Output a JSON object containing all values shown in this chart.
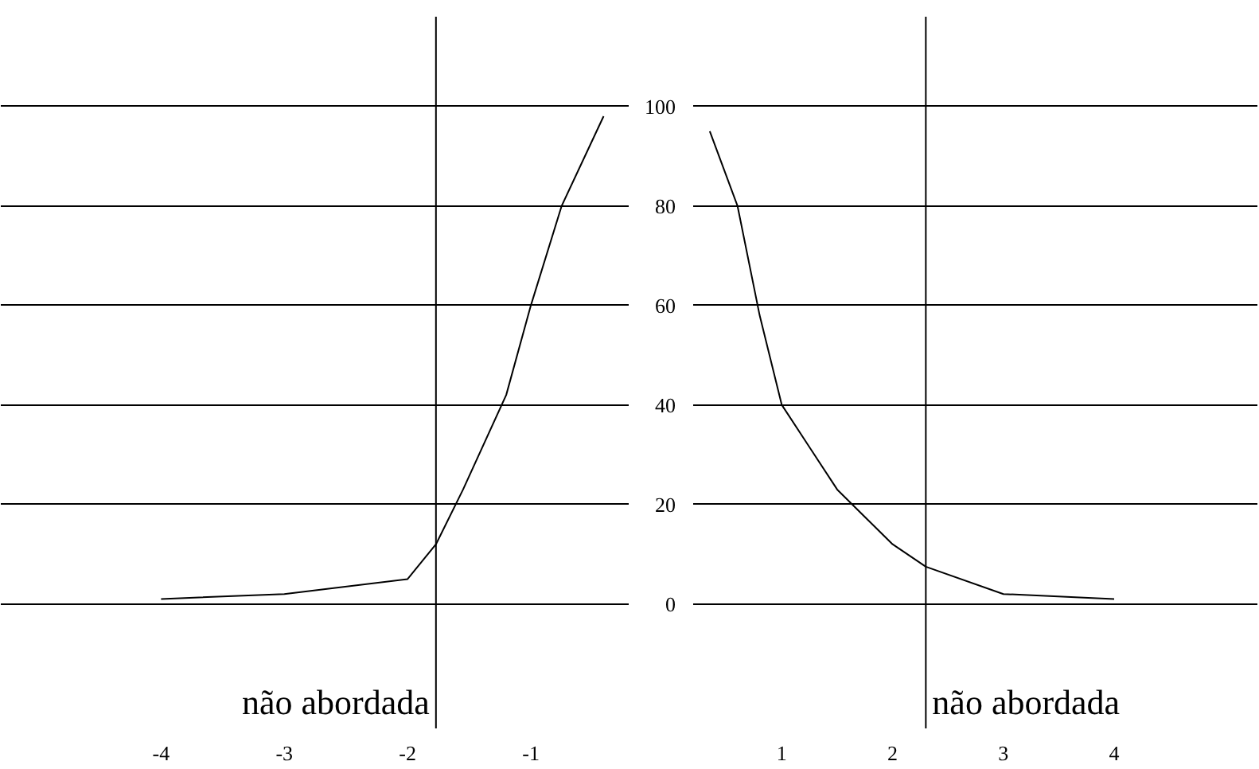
{
  "chart_data": [
    {
      "type": "line",
      "x": [
        -4,
        -3,
        -2,
        -1.77,
        -1.55,
        -1.2,
        -1,
        -0.75,
        -0.41
      ],
      "series": [
        {
          "color": "#000000",
          "values": [
            1,
            2,
            5,
            12,
            23,
            42,
            60,
            80,
            98
          ]
        }
      ],
      "xlim": [
        -5.3,
        -0.2
      ],
      "ylim": [
        -25,
        118
      ],
      "xticks": [
        -4,
        -3,
        -2,
        -1
      ],
      "yticks": [
        0,
        20,
        40,
        60,
        80,
        100
      ],
      "tick_labels": "x",
      "grid": "y",
      "ref_lines": [
        {
          "axis": "x",
          "value": -1.77,
          "label": "não abordada"
        }
      ]
    },
    {
      "type": "line",
      "x": [
        0.35,
        0.6,
        0.8,
        1,
        1.5,
        2,
        2.3,
        3,
        4
      ],
      "series": [
        {
          "color": "#000000",
          "values": [
            95,
            80,
            58,
            40,
            23,
            12,
            7.5,
            2,
            1
          ]
        }
      ],
      "xlim": [
        0.2,
        5.3
      ],
      "ylim": [
        -25,
        118
      ],
      "xticks": [
        1,
        2,
        3,
        4
      ],
      "yticks": [
        0,
        20,
        40,
        60,
        80,
        100
      ],
      "grid": "y",
      "ref_lines": [
        {
          "axis": "x",
          "value": 2.3,
          "label": "não abordada"
        }
      ]
    }
  ]
}
